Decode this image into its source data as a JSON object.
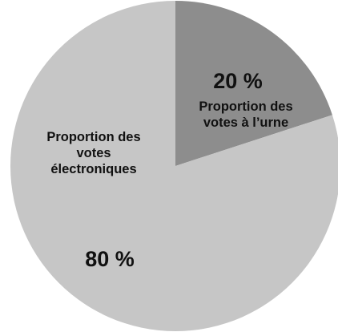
{
  "chart_data": {
    "type": "pie",
    "title": "",
    "slices": [
      {
        "value": 20,
        "percent_label": "20 %",
        "label_lines": [
          "Proportion des",
          "votes à l’urne"
        ],
        "color": "#8d8d8d"
      },
      {
        "value": 80,
        "percent_label": "80 %",
        "label_lines": [
          "Proportion des",
          "votes",
          "électroniques"
        ],
        "color": "#c6c6c6"
      }
    ],
    "start_angle_deg": 0,
    "direction": "clockwise",
    "legend": "none"
  }
}
